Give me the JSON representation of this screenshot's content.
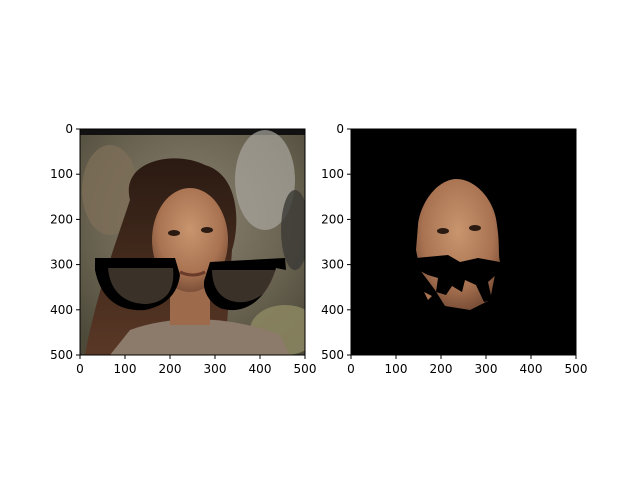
{
  "chart_data": [
    {
      "type": "image",
      "title": "",
      "xlabel": "",
      "ylabel": "",
      "xlim": [
        0,
        500
      ],
      "ylim": [
        500,
        0
      ],
      "xticks": [
        0,
        100,
        200,
        300,
        400,
        500
      ],
      "yticks": [
        0,
        100,
        200,
        300,
        400,
        500
      ],
      "content": "photo of a woman's face with black glasses overlay",
      "background_color": "#6f6a58"
    },
    {
      "type": "image",
      "title": "",
      "xlabel": "",
      "ylabel": "",
      "xlim": [
        0,
        500
      ],
      "ylim": [
        500,
        0
      ],
      "xticks": [
        0,
        100,
        200,
        300,
        400,
        500
      ],
      "yticks": [
        0,
        100,
        200,
        300,
        400,
        500
      ],
      "content": "segmented face mask on black background",
      "background_color": "#000000"
    }
  ]
}
